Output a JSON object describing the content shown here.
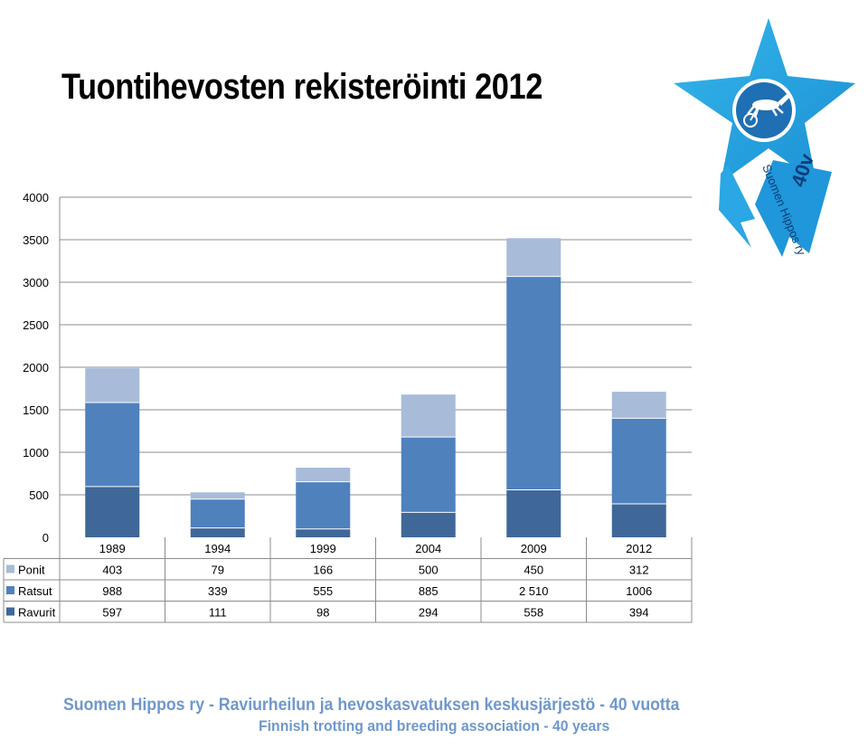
{
  "title": "Tuontihevosten rekisteröinti 2012",
  "chart_data": {
    "type": "bar",
    "stacked": true,
    "categories": [
      "1989",
      "1994",
      "1999",
      "2004",
      "2009",
      "2012"
    ],
    "series": [
      {
        "name": "Ravurit",
        "values": [
          597,
          111,
          98,
          294,
          558,
          394
        ],
        "labels": [
          "597",
          "111",
          "98",
          "294",
          "558",
          "394"
        ],
        "color": "#3f6899"
      },
      {
        "name": "Ratsut",
        "values": [
          988,
          339,
          555,
          885,
          2510,
          1006
        ],
        "labels": [
          "988",
          "339",
          "555",
          "885",
          "2 510",
          "1006"
        ],
        "color": "#4f81bd"
      },
      {
        "name": "Ponit",
        "values": [
          403,
          79,
          166,
          500,
          450,
          312
        ],
        "labels": [
          "403",
          "79",
          "166",
          "500",
          "450",
          "312"
        ],
        "color": "#a8bbd9"
      }
    ],
    "yticks": [
      "0",
      "500",
      "1000",
      "1500",
      "2000",
      "2500",
      "3000",
      "3500",
      "4000"
    ],
    "ylim": [
      0,
      4000
    ],
    "grid": true,
    "legend": "data-table"
  },
  "logo": {
    "text": "Suomen Hippos ry",
    "badge": "40v"
  },
  "footer": {
    "line1": "Suomen Hippos ry - Raviurheilun ja hevoskasvatuksen keskusjärjestö - 40 vuotta",
    "line2": "Finnish trotting and breeding association - 40 years"
  }
}
